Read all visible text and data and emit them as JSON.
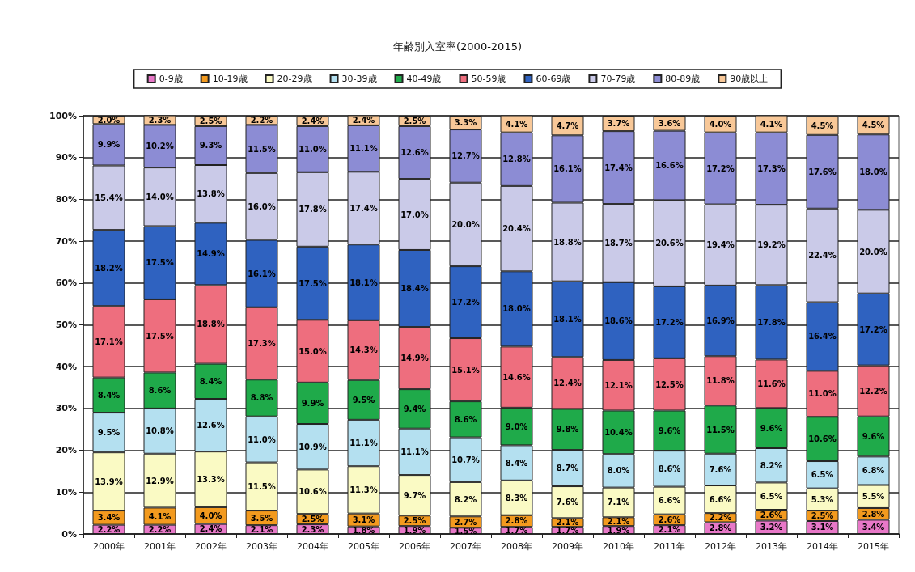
{
  "chart_data": {
    "type": "bar",
    "stacked": true,
    "title": "年齢別入室率(2000-2015)",
    "categories": [
      "2000年",
      "2001年",
      "2002年",
      "2003年",
      "2004年",
      "2005年",
      "2006年",
      "2007年",
      "2008年",
      "2009年",
      "2010年",
      "2011年",
      "2012年",
      "2013年",
      "2014年",
      "2015年"
    ],
    "series": [
      {
        "name": "0-9歳",
        "color": "#e878c8",
        "values": [
          2.2,
          2.2,
          2.4,
          2.1,
          2.3,
          1.8,
          1.9,
          1.5,
          1.7,
          1.7,
          1.9,
          2.1,
          2.8,
          3.2,
          3.1,
          3.4
        ],
        "value_labels": [
          "2.2%",
          "2.2%",
          "2.4%",
          "2.1%",
          "2.3%",
          "1.8%",
          "1.9%",
          "1.5%",
          "1.7%",
          "1.7%",
          "1.9%",
          "2.1%",
          "2.8%",
          "3.2%",
          "3.1%",
          "3.4%"
        ]
      },
      {
        "name": "10-19歳",
        "color": "#f39a1e",
        "values": [
          3.4,
          4.1,
          4.0,
          3.5,
          2.5,
          3.1,
          2.5,
          2.7,
          2.8,
          2.1,
          2.1,
          2.6,
          2.2,
          2.6,
          2.5,
          2.8
        ],
        "value_labels": [
          "3.4%",
          "4.1%",
          "4.0%",
          "3.5%",
          "2.5%",
          "3.1%",
          "2.5%",
          "2.7%",
          "2.8%",
          "2.1%",
          "2.1%",
          "2.6%",
          "2.2%",
          "2.6%",
          "2.5%",
          "2.8%"
        ]
      },
      {
        "name": "20-29歳",
        "color": "#fafac4",
        "values": [
          13.9,
          12.9,
          13.3,
          11.5,
          10.6,
          11.3,
          9.7,
          8.2,
          8.3,
          7.6,
          7.1,
          6.6,
          6.6,
          6.5,
          5.3,
          5.5
        ],
        "value_labels": [
          "13.9%",
          "12.9%",
          "13.3%",
          "11.5%",
          "10.6%",
          "11.3%",
          "9.7%",
          "8.2%",
          "8.3%",
          "7.6%",
          "7.1%",
          "6.6%",
          "6.6%",
          "6.5%",
          "5.3%",
          "5.5%"
        ]
      },
      {
        "name": "30-39歳",
        "color": "#b4e0f0",
        "values": [
          9.5,
          10.8,
          12.6,
          11.0,
          10.9,
          11.1,
          11.1,
          10.7,
          8.4,
          8.7,
          8.0,
          8.6,
          7.6,
          8.2,
          6.5,
          6.8
        ],
        "value_labels": [
          "9.5%",
          "10.8%",
          "12.6%",
          "11.0%",
          "10.9%",
          "11.1%",
          "11.1%",
          "10.7%",
          "8.4%",
          "8.7%",
          "8.0%",
          "8.6%",
          "7.6%",
          "8.2%",
          "6.5%",
          "6.8%"
        ]
      },
      {
        "name": "40-49歳",
        "color": "#1faa4a",
        "values": [
          8.4,
          8.6,
          8.4,
          8.8,
          9.9,
          9.5,
          9.4,
          8.6,
          9.0,
          9.8,
          10.4,
          9.6,
          11.5,
          9.6,
          10.6,
          9.6
        ],
        "value_labels": [
          "8.4%",
          "8.6%",
          "8.4%",
          "8.8%",
          "9.9%",
          "9.5%",
          "9.4%",
          "8.6%",
          "9.0%",
          "9.8%",
          "10.4%",
          "9.6%",
          "11.5%",
          "9.6%",
          "10.6%",
          "9.6%"
        ]
      },
      {
        "name": "50-59歳",
        "color": "#ee6e7e",
        "values": [
          17.1,
          17.5,
          18.8,
          17.3,
          15.0,
          14.3,
          14.9,
          15.1,
          14.6,
          12.4,
          12.1,
          12.5,
          11.8,
          11.6,
          11.0,
          12.2
        ],
        "value_labels": [
          "17.1%",
          "17.5%",
          "18.8%",
          "17.3%",
          "15.0%",
          "14.3%",
          "14.9%",
          "15.1%",
          "14.6%",
          "12.4%",
          "12.1%",
          "12.5%",
          "11.8%",
          "11.6%",
          "11.0%",
          "12.2%"
        ]
      },
      {
        "name": "60-69歳",
        "color": "#2f62c0",
        "values": [
          18.2,
          17.5,
          14.9,
          16.1,
          17.5,
          18.1,
          18.4,
          17.2,
          18.0,
          18.1,
          18.6,
          17.2,
          16.9,
          17.8,
          16.4,
          17.2
        ],
        "value_labels": [
          "18.2%",
          "17.5%",
          "14.9%",
          "16.1%",
          "17.5%",
          "18.1%",
          "18.4%",
          "17.2%",
          "18.0%",
          "18.1%",
          "18.6%",
          "17.2%",
          "16.9%",
          "17.8%",
          "16.4%",
          "17.2%"
        ]
      },
      {
        "name": "70-79歳",
        "color": "#cacae8",
        "values": [
          15.4,
          14.0,
          13.8,
          16.0,
          17.8,
          17.4,
          17.0,
          20.0,
          20.4,
          18.8,
          18.7,
          20.6,
          19.4,
          19.2,
          22.4,
          20.0
        ],
        "value_labels": [
          "15.4%",
          "14.0%",
          "13.8%",
          "16.0%",
          "17.8%",
          "17.4%",
          "17.0%",
          "20.0%",
          "20.4%",
          "18.8%",
          "18.7%",
          "20.6%",
          "19.4%",
          "19.2%",
          "22.4%",
          "20.0%"
        ]
      },
      {
        "name": "80-89歳",
        "color": "#8c8cd4",
        "values": [
          9.9,
          10.2,
          9.3,
          11.5,
          11.0,
          11.1,
          12.6,
          12.7,
          12.8,
          16.1,
          17.4,
          16.6,
          17.2,
          17.3,
          17.6,
          18.0
        ],
        "value_labels": [
          "9.9%",
          "10.2%",
          "9.3%",
          "11.5%",
          "11.0%",
          "11.1%",
          "12.6%",
          "12.7%",
          "12.8%",
          "16.1%",
          "17.4%",
          "16.6%",
          "17.2%",
          "17.3%",
          "17.6%",
          "18.0%"
        ]
      },
      {
        "name": "90歳以上",
        "color": "#f8c898",
        "values": [
          2.0,
          2.3,
          2.5,
          2.2,
          2.4,
          2.4,
          2.5,
          3.3,
          4.1,
          4.7,
          3.7,
          3.6,
          4.0,
          4.1,
          4.5,
          4.5
        ],
        "value_labels": [
          "2.0%",
          "2.3%",
          "2.5%",
          "2.2%",
          "2.4%",
          "2.4%",
          "2.5%",
          "3.3%",
          "4.1%",
          "4.7%",
          "3.7%",
          "3.6%",
          "4.0%",
          "4.1%",
          "4.5%",
          "4.5%"
        ]
      }
    ],
    "ylim": [
      0,
      100
    ],
    "yticks": [
      {
        "value": 0,
        "label": "0%"
      },
      {
        "value": 10,
        "label": "10%"
      },
      {
        "value": 20,
        "label": "20%"
      },
      {
        "value": 30,
        "label": "30%"
      },
      {
        "value": 40,
        "label": "40%"
      },
      {
        "value": 50,
        "label": "50%"
      },
      {
        "value": 60,
        "label": "60%"
      },
      {
        "value": 70,
        "label": "70%"
      },
      {
        "value": 80,
        "label": "80%"
      },
      {
        "value": 90,
        "label": "90%"
      },
      {
        "value": 100,
        "label": "100%"
      }
    ],
    "grid": "y",
    "legend": "top"
  }
}
